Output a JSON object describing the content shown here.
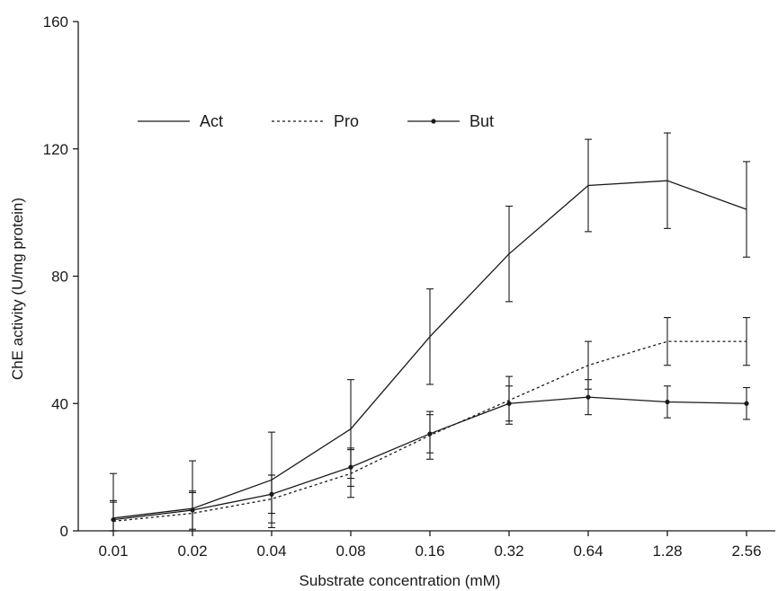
{
  "chart_data": {
    "type": "line",
    "xlabel": "Substrate concentration (mM)",
    "ylabel": "ChE activity (U/mg protein)",
    "categories": [
      "0.01",
      "0.02",
      "0.04",
      "0.08",
      "0.16",
      "0.32",
      "0.64",
      "1.28",
      "2.56"
    ],
    "ylim": [
      0,
      160
    ],
    "yticks": [
      "0",
      "40",
      "80",
      "120",
      "160"
    ],
    "grid": false,
    "legend_position": "top-left",
    "colors": {
      "line": "#1a1a1a",
      "axis": "#1a1a1a"
    },
    "series": [
      {
        "name": "Act",
        "style": "solid",
        "marker": "none",
        "values": [
          4,
          7,
          16,
          32,
          61,
          87,
          108.5,
          110,
          101
        ],
        "errors": [
          14,
          15,
          15,
          15.5,
          15,
          15,
          14.5,
          15,
          15
        ]
      },
      {
        "name": "Pro",
        "style": "dotted",
        "marker": "none",
        "values": [
          3,
          5.5,
          10,
          18,
          30,
          41,
          52,
          59.5,
          59.5
        ],
        "errors": [
          6,
          6.5,
          7.5,
          7.5,
          7.5,
          7.5,
          7.5,
          7.5,
          7.5
        ]
      },
      {
        "name": "But",
        "style": "solid",
        "marker": "dot",
        "values": [
          3.5,
          6.5,
          11.5,
          20,
          30.5,
          40,
          42,
          40.5,
          40
        ],
        "errors": [
          6,
          6,
          6,
          6,
          6,
          5.5,
          5.5,
          5,
          5
        ]
      }
    ]
  }
}
